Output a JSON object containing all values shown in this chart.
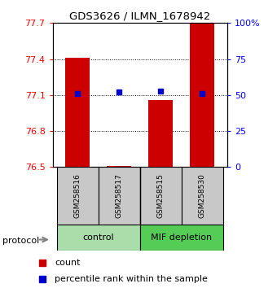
{
  "title": "GDS3626 / ILMN_1678942",
  "samples": [
    "GSM258516",
    "GSM258517",
    "GSM258515",
    "GSM258530"
  ],
  "bar_values": [
    77.41,
    76.51,
    77.06,
    77.7
  ],
  "percentile_values": [
    51,
    52,
    53,
    51
  ],
  "ylim_left": [
    76.5,
    77.7
  ],
  "ylim_right": [
    0,
    100
  ],
  "left_ticks": [
    76.5,
    76.8,
    77.1,
    77.4,
    77.7
  ],
  "right_ticks": [
    0,
    25,
    50,
    75,
    100
  ],
  "bar_color": "#CC0000",
  "dot_color": "#0000CC",
  "plot_bg": "#FFFFFF",
  "sample_box_color": "#C8C8C8",
  "control_color": "#AADDAA",
  "mif_color": "#55CC55",
  "left_tick_labels": [
    "76.5",
    "76.8",
    "77.1",
    "77.4",
    "77.7"
  ],
  "right_tick_labels": [
    "0",
    "25",
    "50",
    "75",
    "100%"
  ]
}
